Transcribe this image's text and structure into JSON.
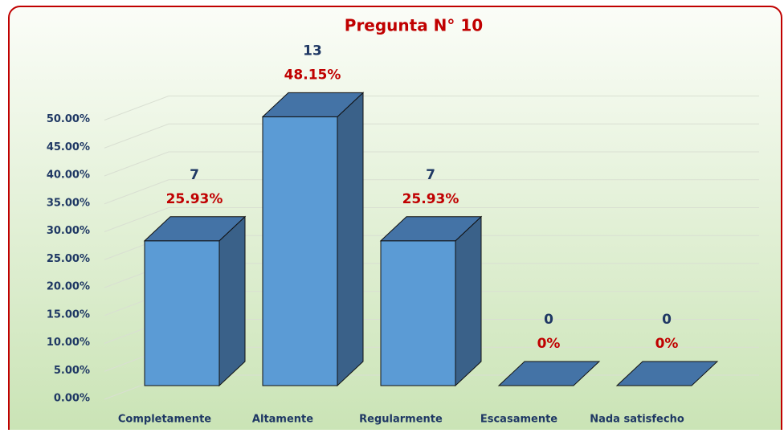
{
  "chart_data": {
    "type": "bar3d",
    "title": "Pregunta N° 10",
    "categories": [
      "Completamente",
      "Altamente",
      "Regularmente",
      "Escasamente",
      "Nada satisfecho"
    ],
    "values": [
      25.93,
      48.15,
      25.93,
      0,
      0
    ],
    "value_labels": [
      "25.93%",
      "48.15%",
      "25.93%",
      "0%",
      "0%"
    ],
    "counts": [
      7,
      13,
      7,
      0,
      0
    ],
    "color": "#5b9bd5",
    "ylim": [
      0,
      55
    ],
    "yticks": [
      {
        "value": 0,
        "label": "0.00%"
      },
      {
        "value": 5,
        "label": "5.00%"
      },
      {
        "value": 10,
        "label": "10.00%"
      },
      {
        "value": 15,
        "label": "15.00%"
      },
      {
        "value": 20,
        "label": "20.00%"
      },
      {
        "value": 25,
        "label": "25.00%"
      },
      {
        "value": 30,
        "label": "30.00%"
      },
      {
        "value": 35,
        "label": "35.00%"
      },
      {
        "value": 40,
        "label": "40.00%"
      },
      {
        "value": 45,
        "label": "45.00%"
      },
      {
        "value": 50,
        "label": "50.00%"
      }
    ],
    "grid": true
  }
}
